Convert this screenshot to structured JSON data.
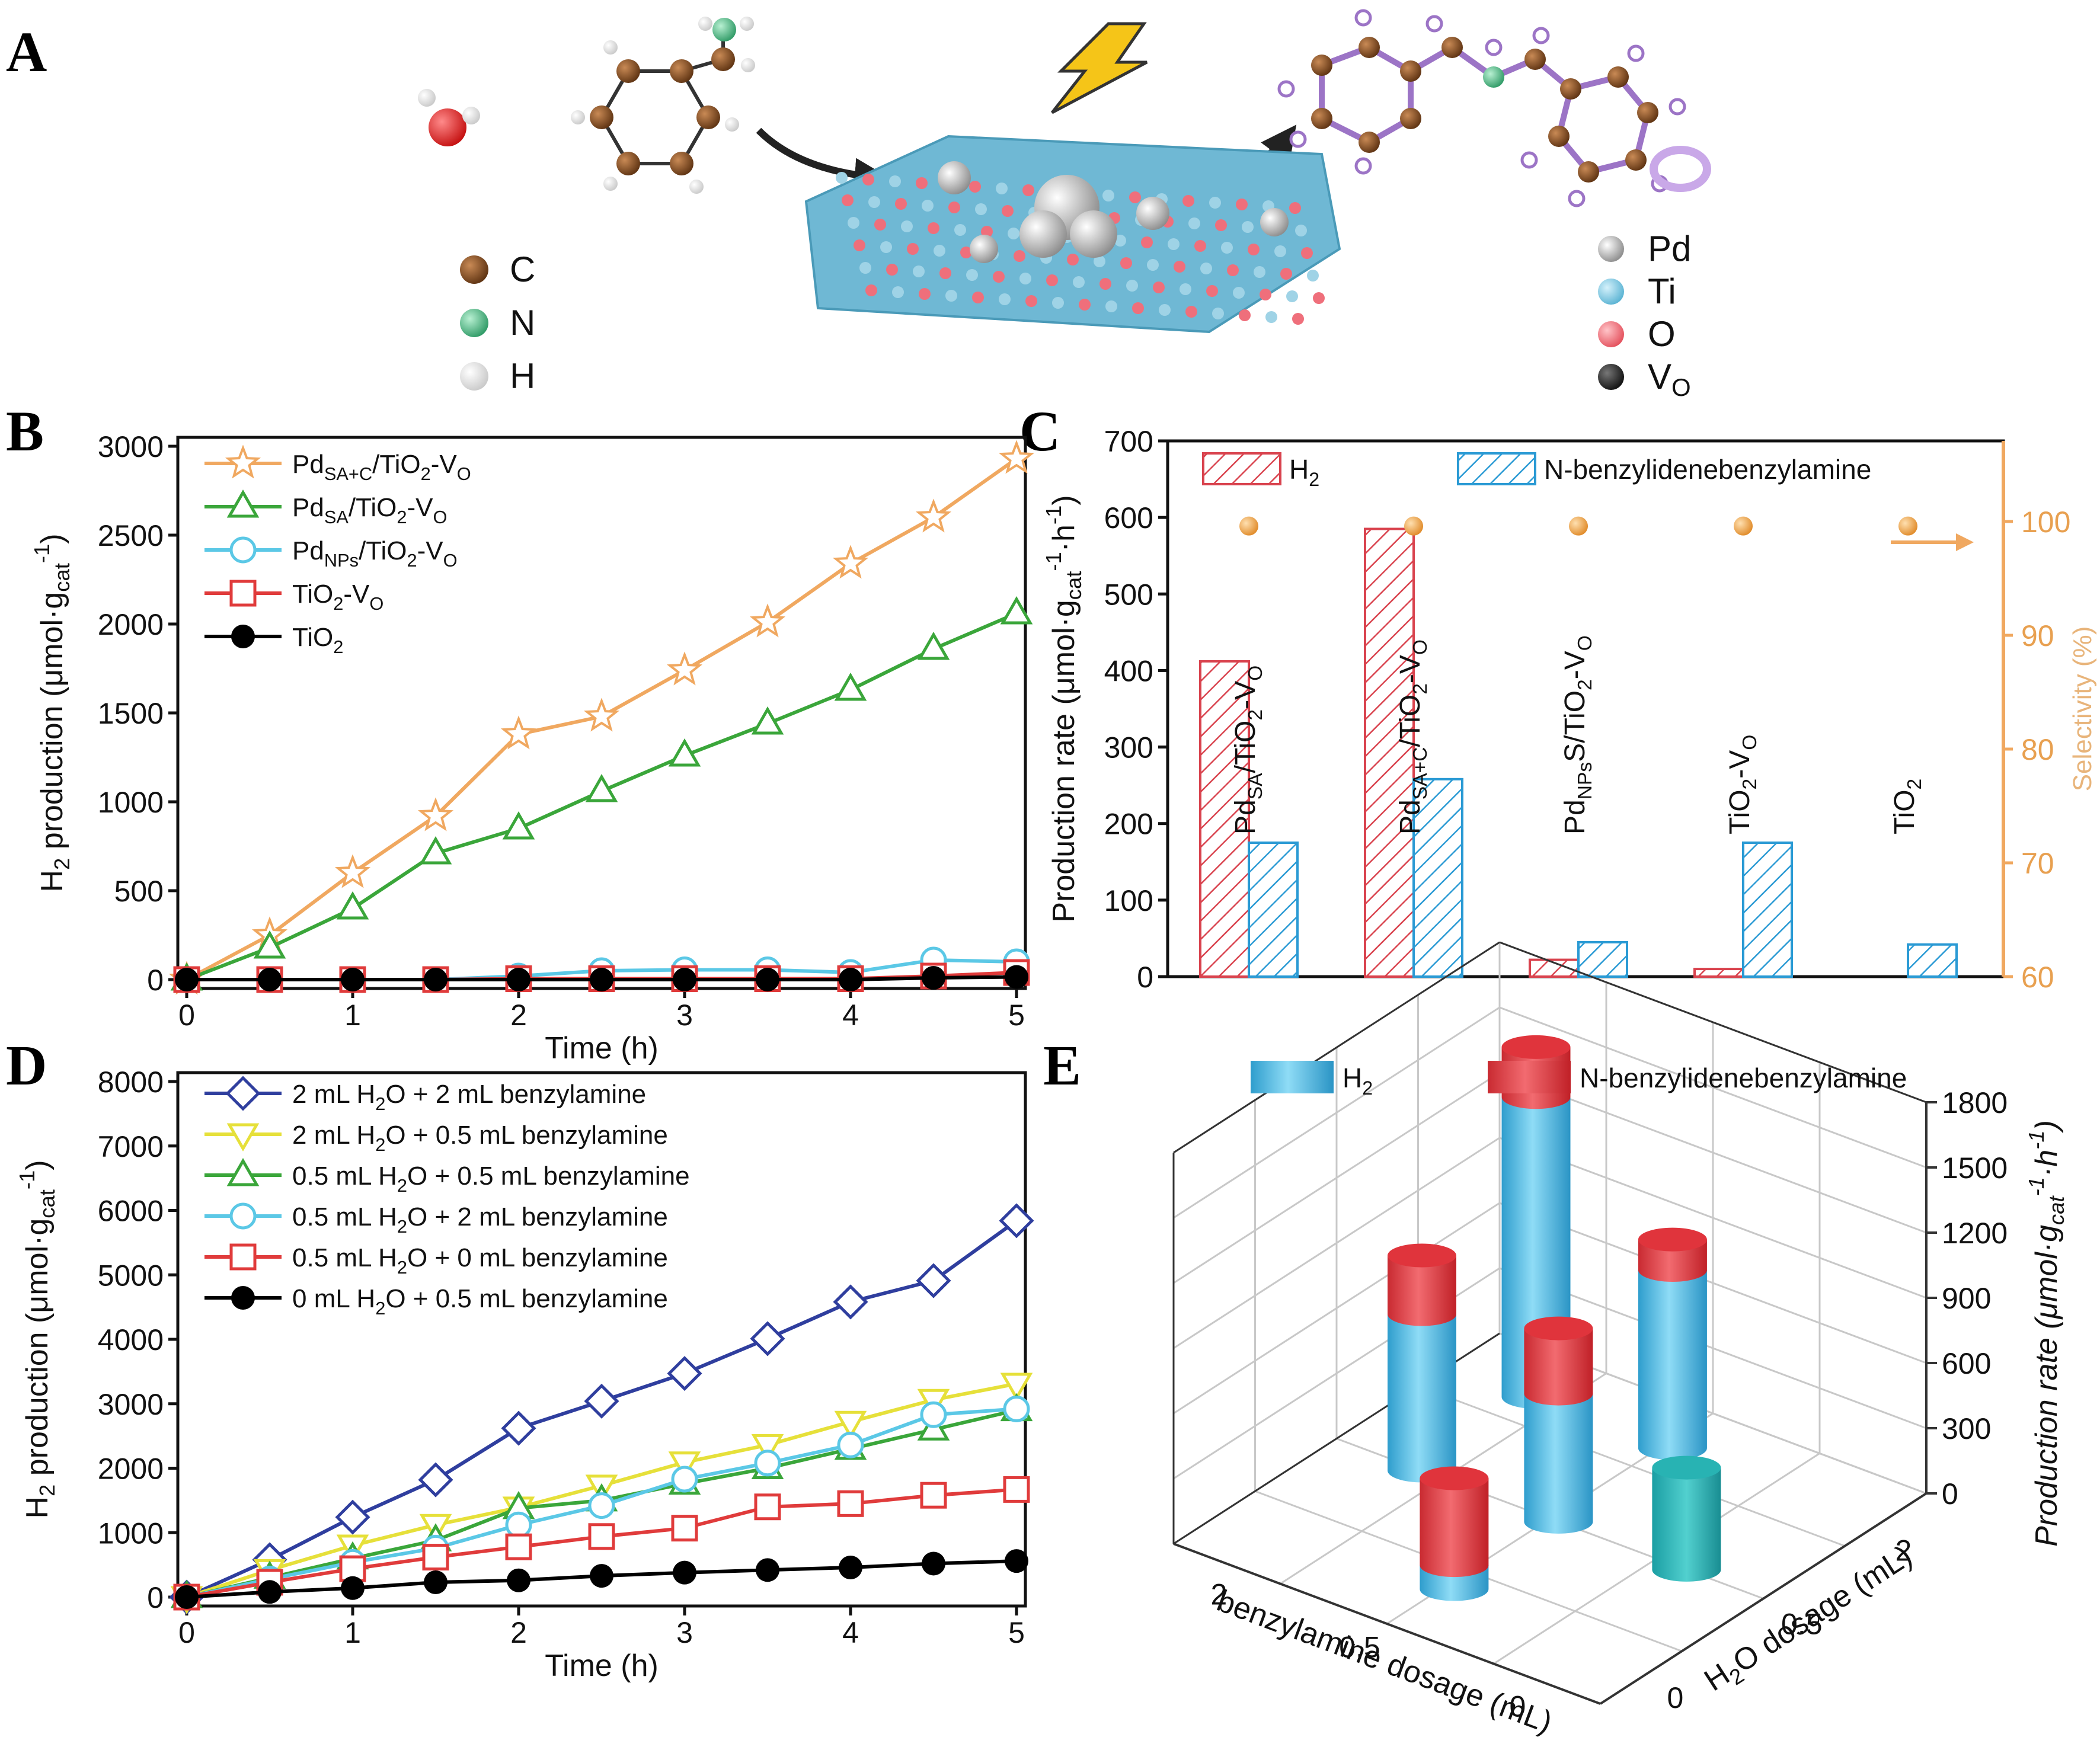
{
  "panels": {
    "A": {
      "letter": "A",
      "legend_left": [
        {
          "label": "C",
          "color": "#7a4420"
        },
        {
          "label": "N",
          "color": "#4fc08d"
        },
        {
          "label": "H",
          "color": "#f2f2f2"
        }
      ],
      "legend_right": [
        {
          "label": "Pd",
          "color": "#bdbdbd"
        },
        {
          "label": "Ti",
          "color": "#7cc3dc"
        },
        {
          "label": "O",
          "color": "#ef6f7b"
        },
        {
          "label": "V",
          "sub": "O",
          "color": "#333333"
        }
      ]
    },
    "B": {
      "letter": "B"
    },
    "C": {
      "letter": "C"
    },
    "D": {
      "letter": "D"
    },
    "E": {
      "letter": "E"
    }
  },
  "chart_data": [
    {
      "panel": "B",
      "type": "line",
      "xlabel": "Time (h)",
      "ylabel": {
        "main": "H",
        "sub1": "2",
        "rest": " production (μmol·g",
        "sub2": "cat",
        "sup": "-1",
        "close": ")"
      },
      "xlim": [
        0,
        5
      ],
      "ylim": [
        0,
        3000
      ],
      "xticks": [
        "0",
        "1",
        "2",
        "3",
        "4",
        "5"
      ],
      "yticks": [
        "0",
        "500",
        "1000",
        "1500",
        "2000",
        "2500",
        "3000"
      ],
      "x": [
        0,
        0.5,
        1,
        1.5,
        2,
        2.5,
        3,
        3.5,
        4,
        4.5,
        5
      ],
      "series": [
        {
          "name": "Pd",
          "sub": "SA+C",
          "tail": "/TiO",
          "sub2": "2",
          "tail2": "-V",
          "sub3": "O",
          "color": "#f0a860",
          "marker": "star",
          "values": [
            0,
            250,
            600,
            920,
            1380,
            1480,
            1740,
            2010,
            2340,
            2600,
            2930
          ]
        },
        {
          "name": "Pd",
          "sub": "SA",
          "tail": "/TiO",
          "sub2": "2",
          "tail2": "-V",
          "sub3": "O",
          "color": "#3aa63a",
          "marker": "triangle",
          "values": [
            0,
            180,
            400,
            710,
            850,
            1060,
            1260,
            1440,
            1630,
            1860,
            2060
          ]
        },
        {
          "name": "Pd",
          "sub": "NPs",
          "tail": "/TiO",
          "sub2": "2",
          "tail2": "-V",
          "sub3": "O",
          "color": "#5bc8e6",
          "marker": "circle-open",
          "values": [
            0,
            0,
            0,
            0,
            20,
            50,
            55,
            55,
            40,
            110,
            100
          ]
        },
        {
          "name": "TiO",
          "sub": "2",
          "tail": "-V",
          "sub2": "O",
          "tail2": "",
          "sub3": "",
          "color": "#e03b3b",
          "marker": "square-open",
          "values": [
            0,
            0,
            0,
            0,
            5,
            5,
            5,
            5,
            5,
            20,
            40
          ]
        },
        {
          "name": "TiO",
          "sub": "2",
          "tail": "",
          "sub2": "",
          "tail2": "",
          "sub3": "",
          "color": "#000000",
          "marker": "circle-filled",
          "values": [
            0,
            0,
            0,
            0,
            0,
            0,
            0,
            0,
            0,
            10,
            15
          ]
        }
      ]
    },
    {
      "panel": "C",
      "type": "bar",
      "ylabel": {
        "main": "Production rate  (μmol·g",
        "sub": "cat",
        "sup": "-1",
        "mid": "·h",
        "sup2": "-1",
        "close": ")"
      },
      "y2label": "Selectivity (%)",
      "ylim": [
        0,
        700
      ],
      "y2lim": [
        60,
        105
      ],
      "yticks": [
        "0",
        "100",
        "200",
        "300",
        "400",
        "500",
        "600",
        "700"
      ],
      "y2ticks": [
        "60",
        "70",
        "80",
        "90",
        "100"
      ],
      "legend": [
        {
          "name": "H",
          "sub": "2",
          "color": "#d9434e"
        },
        {
          "name": "N-benzylidenebenzylamine",
          "sub": "",
          "color": "#2a9ad4"
        }
      ],
      "categories": [
        {
          "label": "Pd",
          "sub": "SA",
          "tail": "/TiO",
          "sub2": "2",
          "tail2": "-V",
          "sub3": "O"
        },
        {
          "label": "Pd",
          "sub": "SA+C",
          "tail": "/TiO",
          "sub2": "2",
          "tail2": "-V",
          "sub3": "O"
        },
        {
          "label": "Pd",
          "sub": "NPs",
          "tail": "S/TiO",
          "sub2": "2",
          "tail2": "-V",
          "sub3": "O"
        },
        {
          "label": "TiO",
          "sub": "2",
          "tail": "-V",
          "sub2": "O",
          "tail2": "",
          "sub3": ""
        },
        {
          "label": "TiO",
          "sub": "2",
          "tail": "",
          "sub2": "",
          "tail2": "",
          "sub3": ""
        }
      ],
      "h2": [
        412,
        585,
        22,
        10,
        0
      ],
      "product": [
        175,
        258,
        45,
        175,
        42
      ],
      "selectivity": [
        99.6,
        99.6,
        99.6,
        99.6,
        99.6
      ]
    },
    {
      "panel": "D",
      "type": "line",
      "xlabel": "Time (h)",
      "ylabel": {
        "main": "H",
        "sub1": "2",
        "rest": " production (μmol·g",
        "sub2": "cat",
        "sup": "-1",
        "close": ")"
      },
      "xlim": [
        0,
        5
      ],
      "ylim": [
        0,
        8000
      ],
      "xticks": [
        "0",
        "1",
        "2",
        "3",
        "4",
        "5"
      ],
      "yticks": [
        "0",
        "1000",
        "2000",
        "3000",
        "4000",
        "5000",
        "6000",
        "7000",
        "8000"
      ],
      "x": [
        0,
        0.5,
        1,
        1.5,
        2,
        2.5,
        3,
        3.5,
        4,
        4.5,
        5
      ],
      "series": [
        {
          "pre": "2 mL H",
          "sub": "2",
          "post": "O + 2 mL benzylamine",
          "color": "#2f3e9e",
          "marker": "diamond",
          "values": [
            0,
            580,
            1240,
            1820,
            2620,
            3040,
            3470,
            4010,
            4580,
            4910,
            5840
          ]
        },
        {
          "pre": "2 mL H",
          "sub": "2",
          "post": "O + 0.5 mL benzylamine",
          "color": "#e6e03a",
          "marker": "triangle-down",
          "values": [
            0,
            420,
            800,
            1120,
            1390,
            1730,
            2090,
            2360,
            2720,
            3060,
            3310
          ]
        },
        {
          "pre": "0.5 mL H",
          "sub": "2",
          "post": "O + 0.5 mL benzylamine",
          "color": "#3aa63a",
          "marker": "triangle",
          "values": [
            0,
            300,
            600,
            880,
            1380,
            1500,
            1760,
            2000,
            2300,
            2600,
            2900
          ]
        },
        {
          "pre": "0.5 mL H",
          "sub": "2",
          "post": "O + 2 mL benzylamine",
          "color": "#5bc8e6",
          "marker": "circle-open",
          "values": [
            0,
            280,
            540,
            760,
            1120,
            1420,
            1830,
            2080,
            2360,
            2830,
            2920
          ]
        },
        {
          "pre": "0.5 mL H",
          "sub": "2",
          "post": "O + 0 mL benzylamine",
          "color": "#e03b3b",
          "marker": "square-open",
          "values": [
            0,
            230,
            440,
            620,
            780,
            940,
            1070,
            1400,
            1450,
            1580,
            1670
          ]
        },
        {
          "pre": "0 mL H",
          "sub": "2",
          "post": "O + 0.5 mL benzylamine",
          "color": "#000000",
          "marker": "circle-filled",
          "values": [
            0,
            80,
            140,
            230,
            260,
            330,
            380,
            420,
            460,
            520,
            560
          ]
        }
      ]
    },
    {
      "panel": "E",
      "type": "bar3d",
      "xlabel": "benzylamine dosage (mL)",
      "ylabel": {
        "main": "H",
        "sub": "2",
        "rest": "O dosage (mL)"
      },
      "zlabel": {
        "main": "Production rate (μmol·g",
        "sub": "cat",
        "sup": "-1",
        "mid": "·h",
        "sup2": "-1",
        "close": ")"
      },
      "zticks": [
        "0",
        "300",
        "600",
        "900",
        "1200",
        "1500",
        "1800"
      ],
      "xticks": [
        "2",
        "0.5",
        "0"
      ],
      "yticks": [
        "0",
        "0.5",
        "2"
      ],
      "legend": [
        {
          "name": "H",
          "sub": "2",
          "color": "#3fb2e0"
        },
        {
          "name": "N-benzylidenebenzylamine",
          "sub": "",
          "color": "#e0343c"
        }
      ],
      "bars": [
        {
          "benzylamine": 2,
          "h2o": 0.5,
          "h2": 720,
          "product": 270
        },
        {
          "benzylamine": 2,
          "h2o": 2,
          "h2": 1380,
          "product": 230
        },
        {
          "benzylamine": 0.5,
          "h2o": 0,
          "h2": 110,
          "product": 400
        },
        {
          "benzylamine": 0.5,
          "h2o": 0.5,
          "h2": 590,
          "product": 300
        },
        {
          "benzylamine": 0.5,
          "h2o": 2,
          "h2": 820,
          "product": 140
        },
        {
          "benzylamine": 0,
          "h2o": 0.5,
          "h2": 470,
          "product": 0
        }
      ]
    }
  ]
}
